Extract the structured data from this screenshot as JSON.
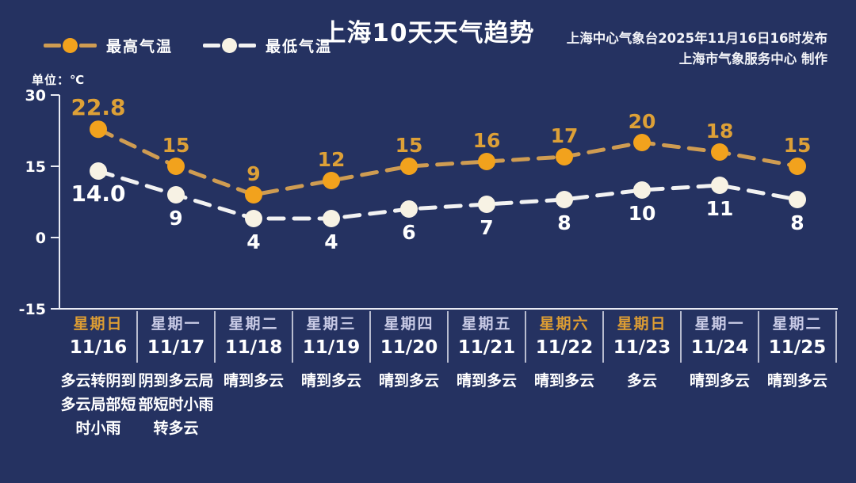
{
  "page": {
    "background": "#253261"
  },
  "header": {
    "title": "上海10天天气趋势",
    "source_line1": "上海中心气象台2025年11月16日16时发布",
    "source_line2": "上海市气象服务中心  制作"
  },
  "legend": {
    "high_label": "最高气温",
    "low_label": "最低气温"
  },
  "unit_label": "单位：℃",
  "colors": {
    "background": "#253261",
    "axis": "#e9ebf4",
    "high_marker": "#f2a21d",
    "high_line": "#cf9c52",
    "high_value_text": "#dda037",
    "low_marker": "#f7f2e4",
    "low_line": "#f2f2f2",
    "low_value_text": "#ffffff",
    "weekday_text": "#c9cbe6",
    "weekend_text": "#dd9d33",
    "date_text": "#ffffff",
    "weather_text": "#ffffff"
  },
  "chart_data": {
    "type": "line",
    "title": "上海10天天气趋势",
    "unit": "℃",
    "x": [
      "11/16",
      "11/17",
      "11/18",
      "11/19",
      "11/20",
      "11/21",
      "11/22",
      "11/23",
      "11/24",
      "11/25"
    ],
    "series": [
      {
        "name": "最高气温",
        "values": [
          22.8,
          15,
          9,
          12,
          15,
          16,
          17,
          20,
          18,
          15
        ],
        "labels": [
          "22.8",
          "15",
          "9",
          "12",
          "15",
          "16",
          "17",
          "20",
          "18",
          "15"
        ]
      },
      {
        "name": "最低气温",
        "values": [
          14.0,
          9,
          4,
          4,
          6,
          7,
          8,
          10,
          11,
          8
        ],
        "labels": [
          "14.0",
          "9",
          "4",
          "4",
          "6",
          "7",
          "8",
          "10",
          "11",
          "8"
        ]
      }
    ],
    "y_ticks": [
      30,
      15,
      0,
      -15
    ],
    "ylim": [
      -15,
      30
    ],
    "grid": false,
    "legend_position": "top-left",
    "line_style": "dashed"
  },
  "days": [
    {
      "weekday": "星期日",
      "date": "11/16",
      "weather": "多云转阴到多云局部短时小雨",
      "weekend": true
    },
    {
      "weekday": "星期一",
      "date": "11/17",
      "weather": "阴到多云局部短时小雨转多云",
      "weekend": false
    },
    {
      "weekday": "星期二",
      "date": "11/18",
      "weather": "晴到多云",
      "weekend": false
    },
    {
      "weekday": "星期三",
      "date": "11/19",
      "weather": "晴到多云",
      "weekend": false
    },
    {
      "weekday": "星期四",
      "date": "11/20",
      "weather": "晴到多云",
      "weekend": false
    },
    {
      "weekday": "星期五",
      "date": "11/21",
      "weather": "晴到多云",
      "weekend": false
    },
    {
      "weekday": "星期六",
      "date": "11/22",
      "weather": "晴到多云",
      "weekend": true
    },
    {
      "weekday": "星期日",
      "date": "11/23",
      "weather": "多云",
      "weekend": true
    },
    {
      "weekday": "星期一",
      "date": "11/24",
      "weather": "晴到多云",
      "weekend": false
    },
    {
      "weekday": "星期二",
      "date": "11/25",
      "weather": "晴到多云",
      "weekend": false
    }
  ]
}
